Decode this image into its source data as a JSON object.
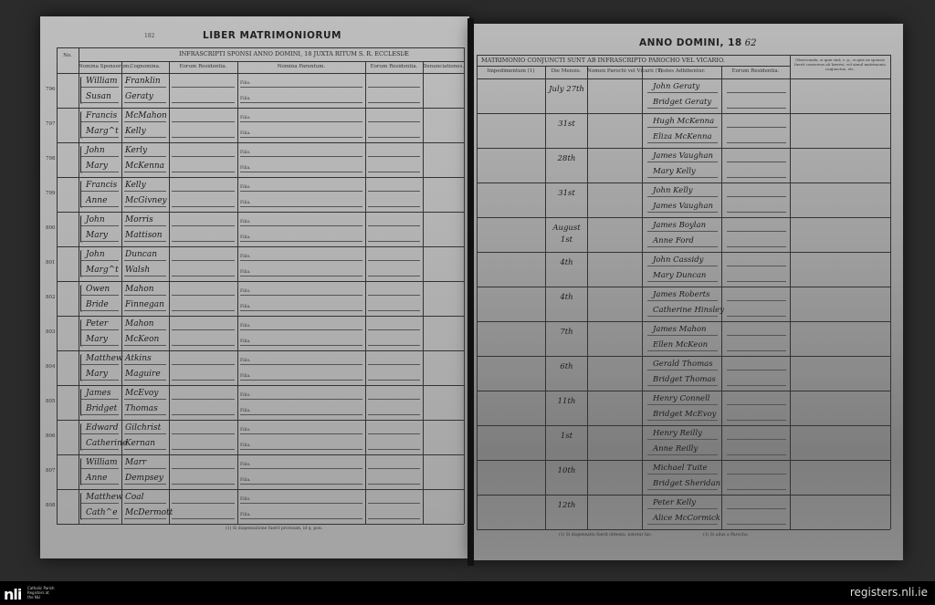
{
  "left_page": {
    "page_number": "182",
    "title": "LIBER MATRIMONIORUM",
    "subtitle": "INFRASCRIPTI SPONSI ANNO DOMINI, 18      JUXTA RITUM S. R. ECCLESIÆ",
    "columns": [
      "No.",
      "Nomina Sponsorum.",
      "Cognomina.",
      "Eorum Residentia.",
      "Nomina Parentum.",
      "Eorum Residentia.",
      "Denunciationes."
    ],
    "parent_labels": [
      "Filio.",
      "Filia."
    ],
    "footnote": "(1) Si dispensatione fuerit provisum, id q. pon.",
    "rows": [
      {
        "no": "796",
        "husband": "William",
        "wife": "Susan",
        "husband_surname": "Franklin",
        "wife_surname": "Geraty"
      },
      {
        "no": "797",
        "husband": "Francis",
        "wife": "Marg^t",
        "husband_surname": "McMahon",
        "wife_surname": "Kelly"
      },
      {
        "no": "798",
        "husband": "John",
        "wife": "Mary",
        "husband_surname": "Kerly",
        "wife_surname": "McKenna"
      },
      {
        "no": "799",
        "husband": "Francis",
        "wife": "Anne",
        "husband_surname": "Kelly",
        "wife_surname": "McGivney"
      },
      {
        "no": "800",
        "husband": "John",
        "wife": "Mary",
        "husband_surname": "Morris",
        "wife_surname": "Mattison"
      },
      {
        "no": "801",
        "husband": "John",
        "wife": "Marg^t",
        "husband_surname": "Duncan",
        "wife_surname": "Walsh"
      },
      {
        "no": "802",
        "husband": "Owen",
        "wife": "Bride",
        "husband_surname": "Mahon",
        "wife_surname": "Finnegan"
      },
      {
        "no": "803",
        "husband": "Peter",
        "wife": "Mary",
        "husband_surname": "Mahon",
        "wife_surname": "McKeon"
      },
      {
        "no": "804",
        "husband": "Matthew",
        "wife": "Mary",
        "husband_surname": "Atkins",
        "wife_surname": "Maguire"
      },
      {
        "no": "805",
        "husband": "James",
        "wife": "Bridget",
        "husband_surname": "McEvoy",
        "wife_surname": "Thomas"
      },
      {
        "no": "806",
        "husband": "Edward",
        "wife": "Catherine",
        "husband_surname": "Gilchrist",
        "wife_surname": "Kernan"
      },
      {
        "no": "807",
        "husband": "William",
        "wife": "Anne",
        "husband_surname": "Marr",
        "wife_surname": "Dempsey"
      },
      {
        "no": "808",
        "husband": "Matthew",
        "wife": "Cath^e",
        "husband_surname": "Coal",
        "wife_surname": "McDermott"
      }
    ]
  },
  "right_page": {
    "title": "ANNO DOMINI, 18",
    "year_handwritten": "62",
    "subtitle": "MATRIMONIO CONJUNCTI SUNT AB INFRASCRIPTO PAROCHO VEL VICARIO.",
    "columns": [
      "Impedimentum (1)",
      "Die Mensis.",
      "Nomen Parochi vel Vicarii (1)",
      "Testes Adhibentur.",
      "Eorum Residentia.",
      "Observanda, si quæ sint; v. g., si quis ex sponsis fuerit conversus ab hæresi, vel simul matrimonio conjunctus, etc."
    ],
    "footnotes": [
      "(1) Si dispensatio fuerit obtenta, notetur hic.",
      "(1) Si alius a Parocho."
    ],
    "rows": [
      {
        "date": "July 27th",
        "witnesses": [
          "John Geraty",
          "Bridget Geraty"
        ]
      },
      {
        "date": "31st",
        "witnesses": [
          "Hugh McKenna",
          "Eliza McKenna"
        ]
      },
      {
        "date": "28th",
        "witnesses": [
          "James Vaughan",
          "Mary Kelly"
        ]
      },
      {
        "date": "31st",
        "witnesses": [
          "John Kelly",
          "James Vaughan"
        ]
      },
      {
        "date": "August 1st",
        "witnesses": [
          "James Boylan",
          "Anne Ford"
        ]
      },
      {
        "date": "4th",
        "witnesses": [
          "John Cassidy",
          "Mary Duncan"
        ]
      },
      {
        "date": "4th",
        "witnesses": [
          "James Roberts",
          "Catherine Hinsley"
        ]
      },
      {
        "date": "7th",
        "witnesses": [
          "James Mahon",
          "Ellen McKeon"
        ]
      },
      {
        "date": "6th",
        "witnesses": [
          "Gerald Thomas",
          "Bridget Thomas"
        ]
      },
      {
        "date": "11th",
        "witnesses": [
          "Henry Connell",
          "Bridget McEvoy"
        ]
      },
      {
        "date": "1st",
        "witnesses": [
          "Henry Reilly",
          "Anne Reilly"
        ]
      },
      {
        "date": "10th",
        "witnesses": [
          "Michael Tuite",
          "Bridget Sheridan"
        ]
      },
      {
        "date": "12th",
        "witnesses": [
          "Peter Kelly",
          "Alice McCormick"
        ]
      }
    ]
  },
  "footer": {
    "logo": "nli",
    "logo_caption": "Catholic Parish Registers at the NLI",
    "site": "registers.nli.ie"
  }
}
